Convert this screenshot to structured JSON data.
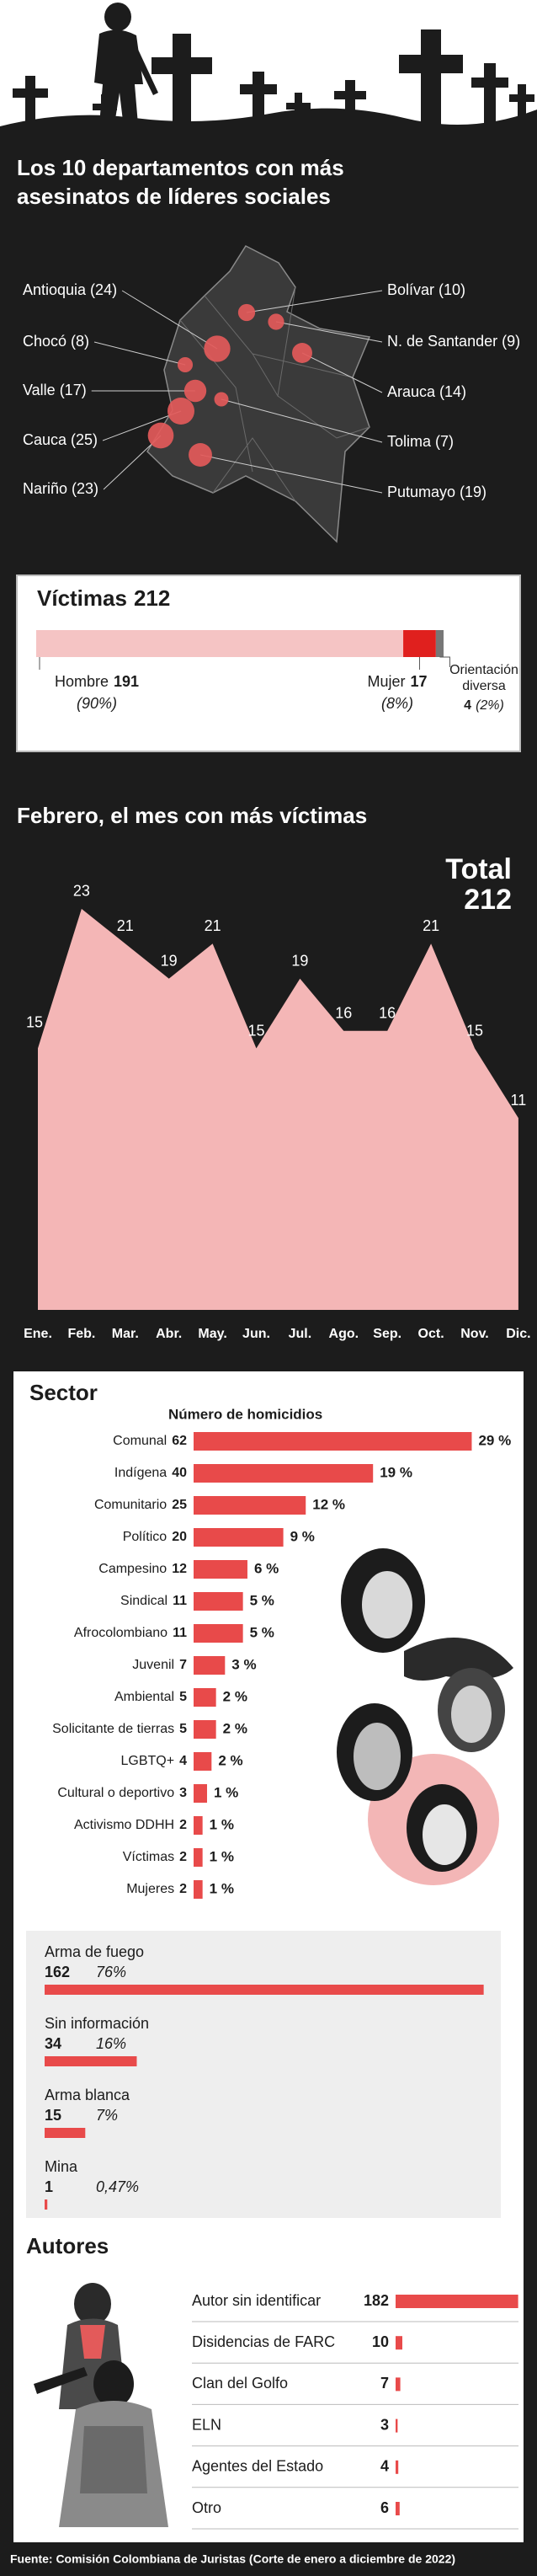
{
  "chart_data": [
    {
      "type": "map",
      "title": "Los 10 departamentos con más asesinatos de líderes sociales",
      "categories": [
        "Antioquia (24)",
        "Chocó (8)",
        "Valle (17)",
        "Cauca (25)",
        "Nariño (23)",
        "Bolívar (10)",
        "N. de Santander (9)",
        "Arauca (14)",
        "Tolima (7)",
        "Putumayo (19)"
      ],
      "values": [
        24,
        8,
        17,
        25,
        23,
        10,
        9,
        14,
        7,
        19
      ],
      "color": "#e35a5a"
    },
    {
      "type": "stacked-bar",
      "title": "Víctimas",
      "total": 212,
      "categories": [
        "Hombre",
        "Mujer",
        "Orientación diversa"
      ],
      "values": [
        191,
        17,
        4
      ],
      "percent_values": [
        90,
        8,
        2
      ],
      "percent_labels": [
        "(90%)",
        "(8%)",
        "(2%)"
      ],
      "colors": [
        "#f5c4c4",
        "#e0201e",
        "#777777"
      ]
    },
    {
      "type": "area",
      "title": "Febrero, el mes con más víctimas",
      "total_label": "Total",
      "total": 212,
      "categories": [
        "Ene.",
        "Feb.",
        "Mar.",
        "Abr.",
        "May.",
        "Jun.",
        "Jul.",
        "Ago.",
        "Sep.",
        "Oct.",
        "Nov.",
        "Dic."
      ],
      "values": [
        15,
        23,
        21,
        19,
        21,
        15,
        19,
        16,
        16,
        21,
        15,
        11
      ],
      "color": "#f4b6b6"
    },
    {
      "type": "hbar",
      "style": "inline",
      "title": "Sector",
      "subtitle": "Número de homicidios",
      "categories": [
        "Comunal",
        "Indígena",
        "Comunitario",
        "Político",
        "Campesino",
        "Sindical",
        "Afrocolombiano",
        "Juvenil",
        "Ambiental",
        "Solicitante de tierras",
        "LGBTQ+",
        "Cultural o deportivo",
        "Activismo DDHH",
        "Víctimas",
        "Mujeres"
      ],
      "values": [
        62,
        40,
        25,
        20,
        12,
        11,
        11,
        7,
        5,
        5,
        4,
        3,
        2,
        2,
        2
      ],
      "percent_values": [
        29,
        19,
        12,
        9,
        6,
        5,
        5,
        3,
        2,
        2,
        2,
        1,
        1,
        1,
        1
      ],
      "percent_labels": [
        "29 %",
        "19 %",
        "12 %",
        "9 %",
        "6 %",
        "5 %",
        "5 %",
        "3 %",
        "2 %",
        "2 %",
        "2 %",
        "1 %",
        "1 %",
        "1 %",
        "1 %"
      ],
      "color": "#e84a4a"
    },
    {
      "type": "hbar",
      "style": "stacked",
      "categories": [
        "Arma de fuego",
        "Sin información",
        "Arma blanca",
        "Mina"
      ],
      "values": [
        162,
        34,
        15,
        1
      ],
      "percent_values": [
        76,
        16,
        7,
        0.47
      ],
      "percent_labels": [
        "76%",
        "16%",
        "7%",
        "0,47%"
      ],
      "color": "#e84a4a"
    },
    {
      "type": "hbar",
      "style": "table",
      "title": "Autores",
      "categories": [
        "Autor sin identificar",
        "Disidencias de FARC",
        "Clan del Golfo",
        "ELN",
        "Agentes del Estado",
        "Otro"
      ],
      "values": [
        182,
        10,
        7,
        3,
        4,
        6
      ],
      "color": "#e84a4a"
    }
  ],
  "source": "Fuente: Comisión Colombiana de Juristas (Corte de enero a diciembre de 2022)"
}
